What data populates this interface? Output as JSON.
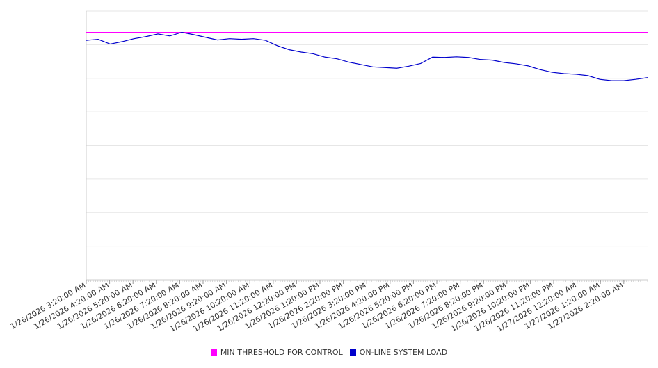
{
  "chart_data": {
    "type": "line",
    "title": "",
    "xlabel": "",
    "ylabel": "",
    "grid": true,
    "legend_position": "bottom",
    "x_tick_labels": [
      "1/26/2026 3:20:00 AM",
      "1/26/2026 4:20:00 AM",
      "1/26/2026 5:20:00 AM",
      "1/26/2026 6:20:00 AM",
      "1/26/2026 7:20:00 AM",
      "1/26/2026 8:20:00 AM",
      "1/26/2026 9:20:00 AM",
      "1/26/2026 10:20:00 AM",
      "1/26/2026 11:20:00 AM",
      "1/26/2026 12:20:00 PM",
      "1/26/2026 1:20:00 PM",
      "1/26/2026 2:20:00 PM",
      "1/26/2026 3:20:00 PM",
      "1/26/2026 4:20:00 PM",
      "1/26/2026 5:20:00 PM",
      "1/26/2026 6:20:00 PM",
      "1/26/2026 7:20:00 PM",
      "1/26/2026 8:20:00 PM",
      "1/26/2026 9:20:00 PM",
      "1/26/2026 10:20:00 PM",
      "1/26/2026 11:20:00 PM",
      "1/27/2026 12:20:00 AM",
      "1/27/2026 1:20:00 AM",
      "1/27/2026 2:20:00 AM"
    ],
    "x": [
      "1/26/2026 3:20:00 AM",
      "1/26/2026 3:50:00 AM",
      "1/26/2026 4:20:00 AM",
      "1/26/2026 4:50:00 AM",
      "1/26/2026 5:20:00 AM",
      "1/26/2026 5:50:00 AM",
      "1/26/2026 6:20:00 AM",
      "1/26/2026 6:50:00 AM",
      "1/26/2026 7:20:00 AM",
      "1/26/2026 7:50:00 AM",
      "1/26/2026 8:20:00 AM",
      "1/26/2026 8:50:00 AM",
      "1/26/2026 9:20:00 AM",
      "1/26/2026 9:50:00 AM",
      "1/26/2026 10:20:00 AM",
      "1/26/2026 10:50:00 AM",
      "1/26/2026 11:20:00 AM",
      "1/26/2026 11:50:00 AM",
      "1/26/2026 12:20:00 PM",
      "1/26/2026 12:50:00 PM",
      "1/26/2026 1:20:00 PM",
      "1/26/2026 1:50:00 PM",
      "1/26/2026 2:20:00 PM",
      "1/26/2026 2:50:00 PM",
      "1/26/2026 3:20:00 PM",
      "1/26/2026 3:50:00 PM",
      "1/26/2026 4:20:00 PM",
      "1/26/2026 4:50:00 PM",
      "1/26/2026 5:20:00 PM",
      "1/26/2026 5:50:00 PM",
      "1/26/2026 6:20:00 PM",
      "1/26/2026 6:50:00 PM",
      "1/26/2026 7:20:00 PM",
      "1/26/2026 7:50:00 PM",
      "1/26/2026 8:20:00 PM",
      "1/26/2026 8:50:00 PM",
      "1/26/2026 9:20:00 PM",
      "1/26/2026 9:50:00 PM",
      "1/26/2026 10:20:00 PM",
      "1/26/2026 10:50:00 PM",
      "1/26/2026 11:20:00 PM",
      "1/26/2026 11:50:00 PM",
      "1/27/2026 12:20:00 AM",
      "1/27/2026 12:50:00 AM",
      "1/27/2026 1:20:00 AM",
      "1/27/2026 1:50:00 AM",
      "1/27/2026 2:20:00 AM",
      "1/27/2026 2:50:00 AM"
    ],
    "ylim": [
      0,
      8
    ],
    "y_grid_count": 8,
    "series": [
      {
        "name": "MIN THRESHOLD FOR CONTROL",
        "color": "#ff00ff",
        "values": [
          7.37,
          7.37,
          7.37,
          7.37,
          7.37,
          7.37,
          7.37,
          7.37,
          7.37,
          7.37,
          7.37,
          7.37,
          7.37,
          7.37,
          7.37,
          7.37,
          7.37,
          7.37,
          7.37,
          7.37,
          7.37,
          7.37,
          7.37,
          7.37,
          7.37,
          7.37,
          7.37,
          7.37,
          7.37,
          7.37,
          7.37,
          7.37,
          7.37,
          7.37,
          7.37,
          7.37,
          7.37,
          7.37,
          7.37,
          7.37,
          7.37,
          7.37,
          7.37,
          7.37,
          7.37,
          7.37,
          7.37,
          7.37
        ]
      },
      {
        "name": "ON-LINE SYSTEM LOAD",
        "color": "#0000cc",
        "values": [
          7.13,
          7.16,
          7.02,
          7.09,
          7.18,
          7.24,
          7.32,
          7.26,
          7.37,
          7.3,
          7.22,
          7.14,
          7.18,
          7.16,
          7.18,
          7.13,
          6.97,
          6.85,
          6.78,
          6.73,
          6.63,
          6.58,
          6.48,
          6.41,
          6.34,
          6.32,
          6.3,
          6.36,
          6.44,
          6.63,
          6.62,
          6.64,
          6.62,
          6.56,
          6.54,
          6.47,
          6.43,
          6.37,
          6.26,
          6.18,
          6.14,
          6.12,
          6.08,
          5.97,
          5.93,
          5.93,
          5.97,
          6.02
        ]
      }
    ]
  },
  "legend": [
    {
      "label": "MIN THRESHOLD FOR CONTROL",
      "color": "#ff00ff"
    },
    {
      "label": "ON-LINE SYSTEM LOAD",
      "color": "#0000cc"
    }
  ]
}
